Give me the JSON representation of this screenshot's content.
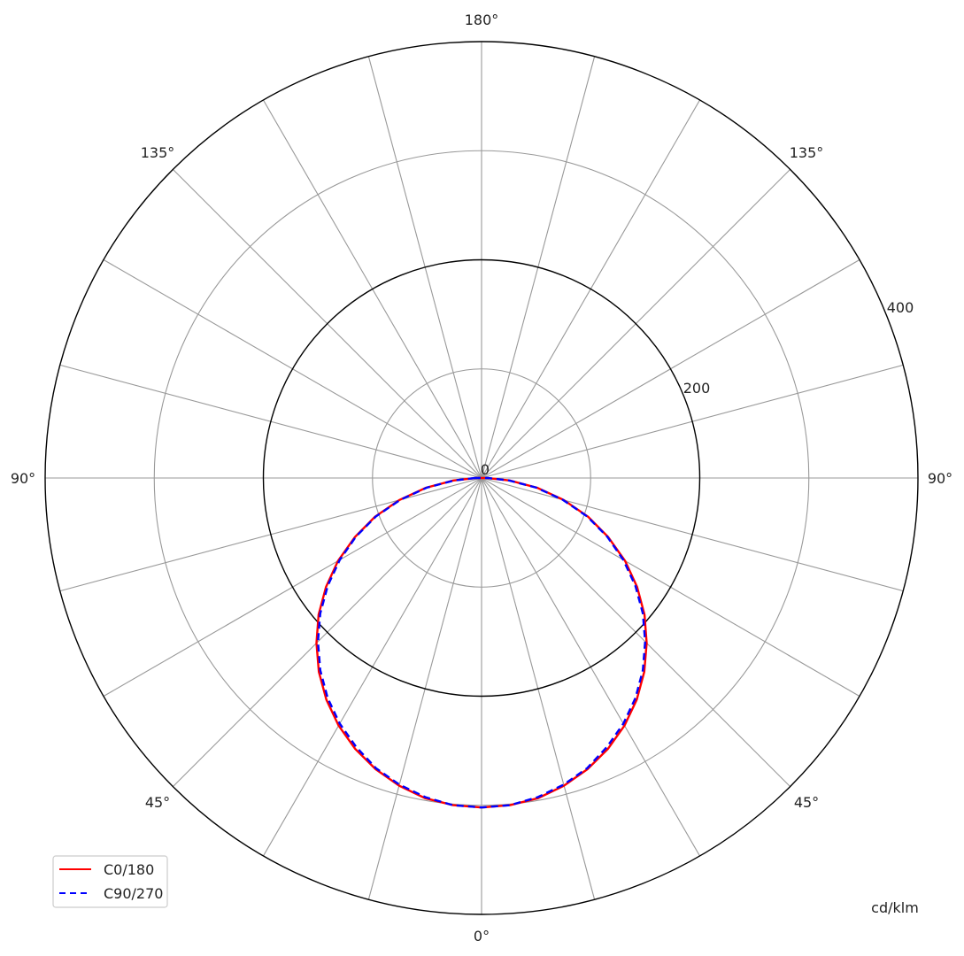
{
  "chart_data": {
    "type": "polar-line",
    "unit_label": "cd/klm",
    "radial_range": [
      0,
      400
    ],
    "radial_rings": [
      100,
      200,
      300,
      400
    ],
    "radial_major_rings": [
      200,
      400
    ],
    "radial_tick_labels": [
      "0",
      "200",
      "400"
    ],
    "angle_spoke_step_deg": 15,
    "angle_labels": {
      "top": "180°",
      "upper_left": "135°",
      "upper_right": "135°",
      "left": "90°",
      "right": "90°",
      "lower_left": "45°",
      "lower_right": "45°",
      "bottom": "0°"
    },
    "grid": true,
    "legend_position": "bottom-left",
    "gamma_deg": [
      0,
      5,
      10,
      15,
      20,
      25,
      30,
      35,
      40,
      45,
      50,
      55,
      60,
      65,
      70,
      75,
      80,
      85,
      90
    ],
    "series": [
      {
        "name": "C0/180",
        "color": "#ff0000",
        "dash": "solid",
        "values": [
          302,
          301,
          298,
          292,
          284,
          274,
          262,
          248,
          232,
          214,
          195,
          174,
          152,
          128,
          104,
          78,
          52,
          26,
          5
        ]
      },
      {
        "name": "C90/270",
        "color": "#0000ff",
        "dash": "dashed",
        "values": [
          302,
          301,
          297,
          291,
          283,
          272,
          260,
          246,
          230,
          212,
          193,
          172,
          150,
          127,
          103,
          77,
          51,
          25,
          6
        ]
      }
    ]
  }
}
